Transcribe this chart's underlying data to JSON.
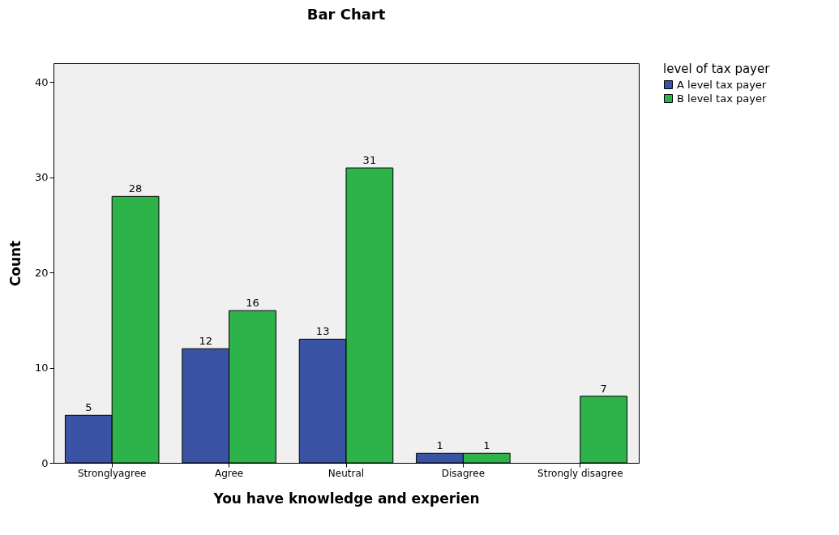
{
  "chart_data": {
    "type": "bar",
    "title": "Bar Chart",
    "xlabel": "You have knowledge and experien",
    "ylabel": "Count",
    "legend_title": "level of tax payer",
    "categories": [
      "Stronglyagree",
      "Agree",
      "Neutral",
      "Disagree",
      "Strongly disagree"
    ],
    "series": [
      {
        "name": "A level tax payer",
        "color": "#3a53a4",
        "values": [
          5,
          12,
          13,
          1,
          null
        ]
      },
      {
        "name": "B level tax payer",
        "color": "#2db34a",
        "values": [
          28,
          16,
          31,
          1,
          7
        ]
      }
    ],
    "ylim": [
      0,
      42
    ],
    "yticks": [
      0,
      10,
      20,
      30,
      40
    ],
    "grid": false,
    "legend": "top right",
    "data_labels": true
  }
}
